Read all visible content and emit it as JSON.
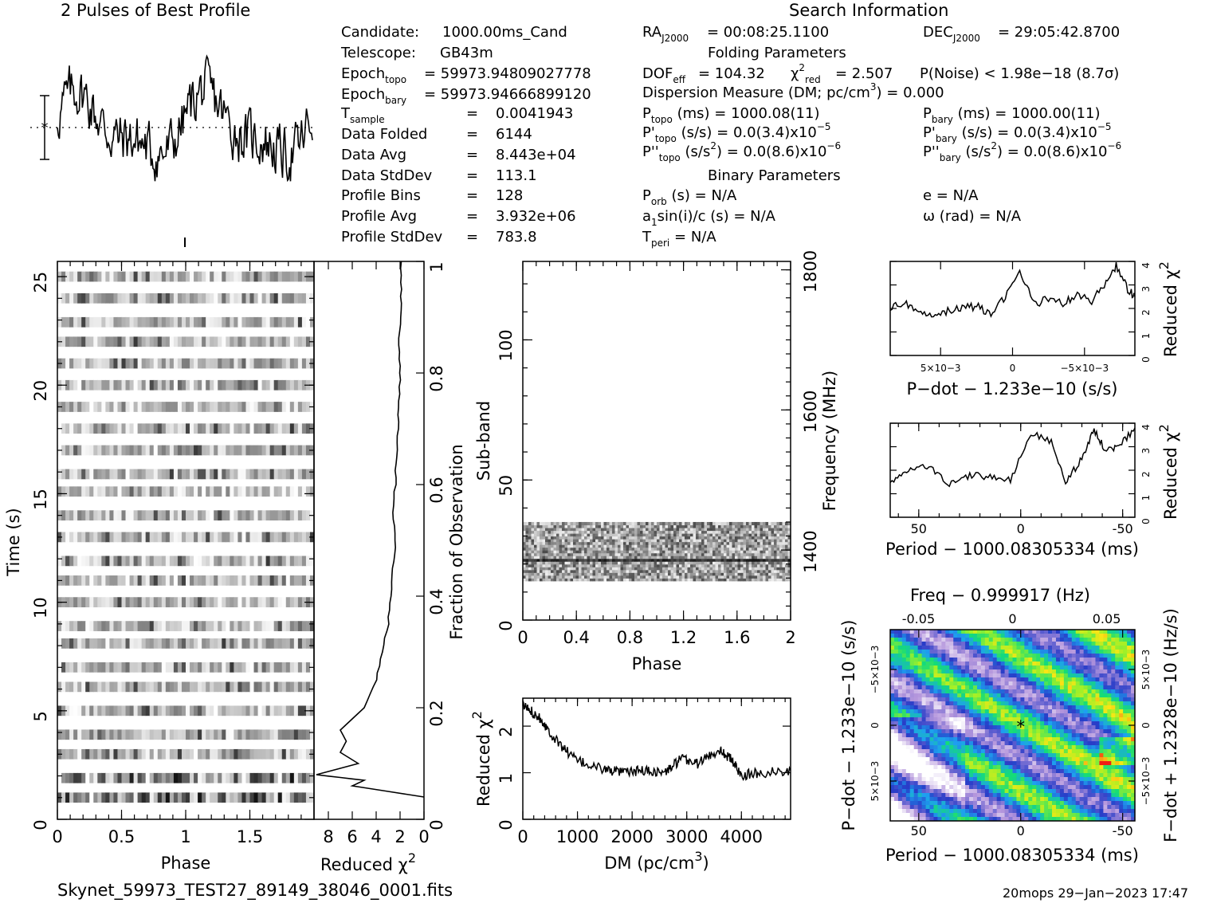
{
  "title_profile": "2 Pulses of Best Profile",
  "title_search": "Search Information",
  "candidate_info": [
    {
      "label": "Candidate:",
      "value": "1000.00ms_Cand"
    },
    {
      "label": "Telescope:",
      "value": "GB43m"
    },
    {
      "label": "Epoch",
      "sub": "topo",
      "value": "= 59973.94809027778"
    },
    {
      "label": "Epoch",
      "sub": "bary",
      "value": "= 59973.94666899120"
    },
    {
      "label": "T",
      "sub": "sample",
      "value": "0.0041943"
    },
    {
      "label": "Data Folded",
      "value": "6144"
    },
    {
      "label": "Data Avg",
      "value": "8.443e+04"
    },
    {
      "label": "Data StdDev",
      "value": "113.1"
    },
    {
      "label": "Profile Bins",
      "value": "128"
    },
    {
      "label": "Profile Avg",
      "value": "3.932e+06"
    },
    {
      "label": "Profile StdDev",
      "value": "783.8"
    }
  ],
  "search_info": {
    "ra": "= 00:08:25.1100",
    "dec": "= 29:05:42.8700",
    "folding_header": "Folding Parameters",
    "dof": "= 104.32",
    "chi2red": "= 2.507",
    "pnoise": "P(Noise) < 1.98e−18   (8.7σ)",
    "dm": "Dispersion Measure (DM; pc/cm",
    "dm_value": ") = 0.000",
    "ptopo": "(ms) =  1000.08(11)",
    "pbary": "(ms) =  1000.00(11)",
    "pdtopo": "(s/s) = 0.0(3.4)x10",
    "pdtopo_exp": "−5",
    "pdbary": "(s/s) = 0.0(3.4)x10",
    "pdbary_exp": "−5",
    "pddtopo": ") = 0.0(8.6)x10",
    "pddtopo_exp": "−6",
    "pddbary": ") = 0.0(8.6)x10",
    "pddbary_exp": "−6",
    "binary_header": "Binary Parameters",
    "porb": "(s) = N/A",
    "e": "e = N/A",
    "a1sini": "sin(i)/c (s) = N/A",
    "omega": "ω (rad) = N/A",
    "tperi": "= N/A"
  },
  "footer": {
    "filename": "Skynet_59973_TEST27_89149_38046_0001.fits",
    "stamp": "20mops 29−Jan−2023 17:47"
  },
  "colors": {
    "ink": "#000000",
    "background": "#ffffff",
    "cmap_low": "#ffffff",
    "cmap_mid": "#00ff00",
    "cmap_high": "#ff0000"
  },
  "chart_data": [
    {
      "id": "profile",
      "type": "line",
      "title": "2 Pulses of Best Profile",
      "x_range": [
        0,
        2
      ],
      "bins": 256,
      "note_errorbar": true
    },
    {
      "id": "time_phase",
      "type": "heatmap",
      "xlabel": "Phase",
      "ylabel": "Time (s)",
      "xlim": [
        0,
        2
      ],
      "ylim": [
        0,
        25.7
      ],
      "xticks": [
        0,
        0.5,
        1,
        1.5
      ],
      "yticks": [
        0,
        5,
        10,
        15,
        20,
        25
      ],
      "dark_rows_s": [
        1.0,
        1.9,
        3.0,
        3.9,
        5.0,
        6.1,
        7.0,
        8.1,
        8.9,
        10.0,
        11.0,
        11.9,
        13.0,
        14.0,
        15.1,
        15.9,
        17.0,
        18.0,
        19.0,
        20.0,
        21.0,
        22.0,
        22.9,
        24.0,
        25.0
      ],
      "fill": "grayscale"
    },
    {
      "id": "chi2_vs_time",
      "type": "line",
      "xlabel": "Reduced χ2",
      "ylabel": "Fraction of Observation",
      "xlim": [
        9.2,
        0
      ],
      "ylim": [
        0,
        1
      ],
      "xticks": [
        8,
        6,
        4,
        2,
        0
      ],
      "yticks": [
        0,
        0.2,
        0.4,
        0.6,
        0.8,
        1
      ],
      "points": [
        [
          0.0,
          0.04
        ],
        [
          6.0,
          0.06
        ],
        [
          5.0,
          0.07
        ],
        [
          9.0,
          0.08
        ],
        [
          5.5,
          0.1
        ],
        [
          7.0,
          0.12
        ],
        [
          6.5,
          0.14
        ],
        [
          7.0,
          0.16
        ],
        [
          5.0,
          0.2
        ],
        [
          4.0,
          0.25
        ],
        [
          3.5,
          0.3
        ],
        [
          3.0,
          0.35
        ],
        [
          2.8,
          0.4
        ],
        [
          2.6,
          0.45
        ],
        [
          2.4,
          0.5
        ],
        [
          2.6,
          0.55
        ],
        [
          2.4,
          0.6
        ],
        [
          2.3,
          0.65
        ],
        [
          2.2,
          0.7
        ],
        [
          2.1,
          0.75
        ],
        [
          2.0,
          0.8
        ],
        [
          2.1,
          0.85
        ],
        [
          2.0,
          0.9
        ],
        [
          1.9,
          0.95
        ],
        [
          1.9,
          1.0
        ]
      ]
    },
    {
      "id": "subband_phase",
      "type": "heatmap",
      "xlabel": "Phase",
      "ylabel": "Sub-band",
      "y2label": "Frequency (MHz)",
      "xlim": [
        0,
        2
      ],
      "ylim": [
        0,
        128
      ],
      "xticks": [
        0,
        0.4,
        0.8,
        1.2,
        1.6,
        2
      ],
      "yticks": [
        0,
        50,
        100
      ],
      "y2ticks": [
        1400,
        1600,
        1800
      ],
      "y2lim": [
        1300,
        1812
      ],
      "band_rows": [
        14,
        35
      ],
      "bright_row": 21
    },
    {
      "id": "chi2_vs_dm",
      "type": "line",
      "xlabel": "DM (pc/cm3)",
      "ylabel": "Reduced χ2",
      "xlim": [
        0,
        4900
      ],
      "ylim": [
        0,
        2.6
      ],
      "xticks": [
        0,
        1000,
        2000,
        3000,
        4000
      ],
      "yticks": [
        0,
        1,
        2
      ],
      "points": [
        [
          0,
          2.45
        ],
        [
          300,
          2.2
        ],
        [
          600,
          1.7
        ],
        [
          1000,
          1.25
        ],
        [
          1400,
          1.1
        ],
        [
          1800,
          1.0
        ],
        [
          2200,
          1.05
        ],
        [
          2600,
          1.0
        ],
        [
          2900,
          1.3
        ],
        [
          3200,
          1.2
        ],
        [
          3600,
          1.5
        ],
        [
          3800,
          1.3
        ],
        [
          4000,
          0.95
        ],
        [
          4400,
          1.0
        ],
        [
          4900,
          1.05
        ]
      ]
    },
    {
      "id": "chi2_vs_pdot",
      "type": "line",
      "xlabel": "P−dot − 1.233e−10 (s/s)",
      "ylabel": "Reduced χ2",
      "xlim": [
        0.0085,
        -0.0085
      ],
      "ylim": [
        0,
        4
      ],
      "xtick_labels": [
        "5×10−3",
        "0",
        "−5×10−3"
      ],
      "xticks": [
        0.005,
        0,
        -0.005
      ],
      "yticks": [
        0,
        1,
        2,
        3,
        4
      ],
      "points": [
        [
          0.0085,
          2.0
        ],
        [
          0.0075,
          2.3
        ],
        [
          0.0065,
          1.7
        ],
        [
          0.0055,
          1.8
        ],
        [
          0.0045,
          1.9
        ],
        [
          0.0035,
          2.0
        ],
        [
          0.0025,
          2.1
        ],
        [
          0.0015,
          1.7
        ],
        [
          0.0005,
          2.5
        ],
        [
          -0.0005,
          3.6
        ],
        [
          -0.0015,
          2.2
        ],
        [
          -0.0025,
          2.4
        ],
        [
          -0.0035,
          2.2
        ],
        [
          -0.0045,
          2.6
        ],
        [
          -0.0055,
          2.3
        ],
        [
          -0.0065,
          3.1
        ],
        [
          -0.0072,
          3.8
        ],
        [
          -0.008,
          2.8
        ],
        [
          -0.0085,
          2.5
        ]
      ]
    },
    {
      "id": "chi2_vs_period",
      "type": "line",
      "xlabel": "Period − 1000.08305334 (ms)",
      "ylabel": "Reduced χ2",
      "xlim": [
        64,
        -56
      ],
      "ylim": [
        0,
        4
      ],
      "xticks": [
        50,
        0,
        -50
      ],
      "yticks": [
        0,
        1,
        2,
        3,
        4
      ],
      "points": [
        [
          64,
          1.5
        ],
        [
          55,
          2.0
        ],
        [
          45,
          2.2
        ],
        [
          35,
          1.4
        ],
        [
          25,
          1.8
        ],
        [
          15,
          1.7
        ],
        [
          5,
          1.6
        ],
        [
          -5,
          3.6
        ],
        [
          -15,
          3.2
        ],
        [
          -22,
          1.5
        ],
        [
          -30,
          2.5
        ],
        [
          -36,
          3.7
        ],
        [
          -42,
          2.8
        ],
        [
          -48,
          3.0
        ],
        [
          -56,
          3.8
        ]
      ]
    },
    {
      "id": "period_pdot",
      "type": "heatmap",
      "xlabel": "Period − 1000.08305334 (ms)",
      "ylabel": "P−dot − 1.233e−10 (s/s)",
      "x2label": "Freq − 0.999917 (Hz)",
      "y2label": "F−dot + 1.2328e−10 (Hz/s)",
      "xlim": [
        64,
        -56
      ],
      "ylim": [
        0.0085,
        -0.0085
      ],
      "xticks": [
        50,
        0,
        -50
      ],
      "x2ticks": [
        -0.05,
        0,
        0.05
      ],
      "yticks": [
        "−5×10−3",
        "0",
        "5×10−3"
      ],
      "y2ticks": [
        "5×10−3",
        "0",
        "−5×10−3"
      ],
      "marker": [
        0,
        0
      ]
    }
  ]
}
